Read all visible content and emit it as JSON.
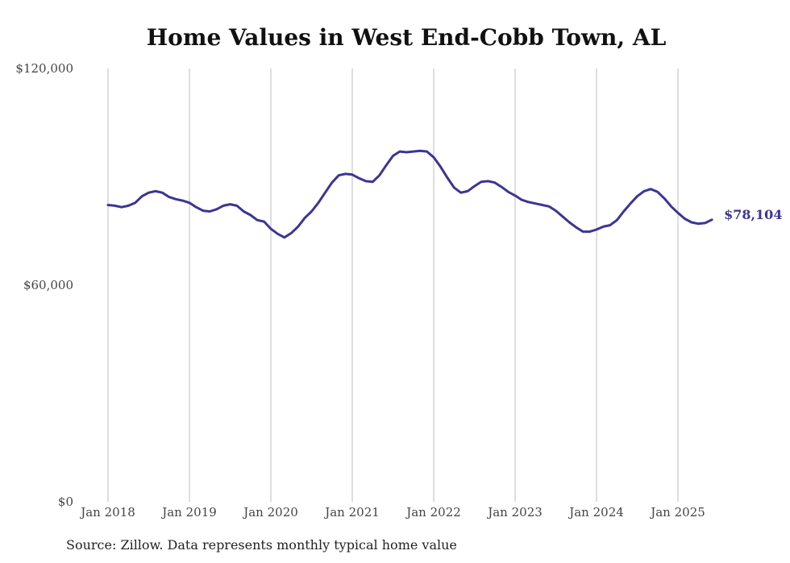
{
  "chart_data": {
    "type": "line",
    "title": "Home Values in West End-Cobb Town, AL",
    "source": "Source: Zillow. Data represents monthly typical home value",
    "ylim": [
      0,
      120000
    ],
    "yticks": [
      {
        "value": 0,
        "label": "$0"
      },
      {
        "value": 60000,
        "label": "$60,000"
      },
      {
        "value": 120000,
        "label": "$120,000"
      }
    ],
    "xticks": [
      "Jan 2018",
      "Jan 2019",
      "Jan 2020",
      "Jan 2021",
      "Jan 2022",
      "Jan 2023",
      "Jan 2024",
      "Jan 2025"
    ],
    "x_start": "2018-01",
    "grid": "vertical",
    "line_color": "#3b3594",
    "end_label": "$78,104",
    "series": [
      {
        "values": [
          82200,
          82000,
          81600,
          82000,
          82800,
          84600,
          85600,
          86000,
          85600,
          84400,
          83800,
          83400,
          82800,
          81600,
          80600,
          80400,
          81000,
          82000,
          82400,
          82000,
          80400,
          79400,
          78000,
          77600,
          75600,
          74200,
          73200,
          74400,
          76200,
          78600,
          80400,
          82800,
          85600,
          88400,
          90400,
          90800,
          90600,
          89600,
          88800,
          88600,
          90400,
          93200,
          95800,
          97000,
          96800,
          97000,
          97200,
          97000,
          95400,
          92800,
          89800,
          87000,
          85600,
          86000,
          87400,
          88600,
          88800,
          88400,
          87200,
          85800,
          84800,
          83600,
          83000,
          82600,
          82200,
          81800,
          80600,
          79000,
          77400,
          76000,
          74800,
          74800,
          75400,
          76200,
          76600,
          78000,
          80400,
          82600,
          84600,
          86000,
          86600,
          85800,
          84000,
          81800,
          80000,
          78400,
          77400,
          77000,
          77200,
          78104
        ]
      }
    ]
  }
}
